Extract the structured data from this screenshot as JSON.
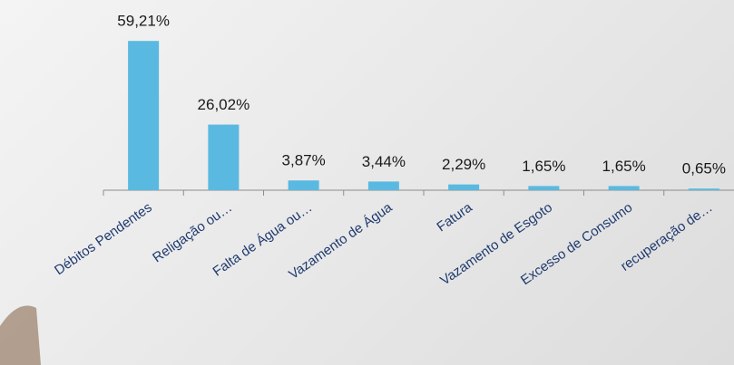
{
  "chart_data": {
    "type": "bar",
    "categories": [
      "Débitos Pendentes",
      "Religação ou…",
      "Falta de Água ou…",
      "Vazamento de Água",
      "Fatura",
      "Vazamento de Esgoto",
      "Excesso de Consumo",
      "recuperação de…"
    ],
    "values": [
      59.21,
      26.02,
      3.87,
      3.44,
      2.29,
      1.65,
      1.65,
      0.65
    ],
    "value_labels": [
      "59,21%",
      "26,02%",
      "3,87%",
      "3,44%",
      "2,29%",
      "1,65%",
      "1,65%",
      "0,65%"
    ],
    "color": "#5ab9e0",
    "ylim": [
      0,
      60
    ]
  }
}
